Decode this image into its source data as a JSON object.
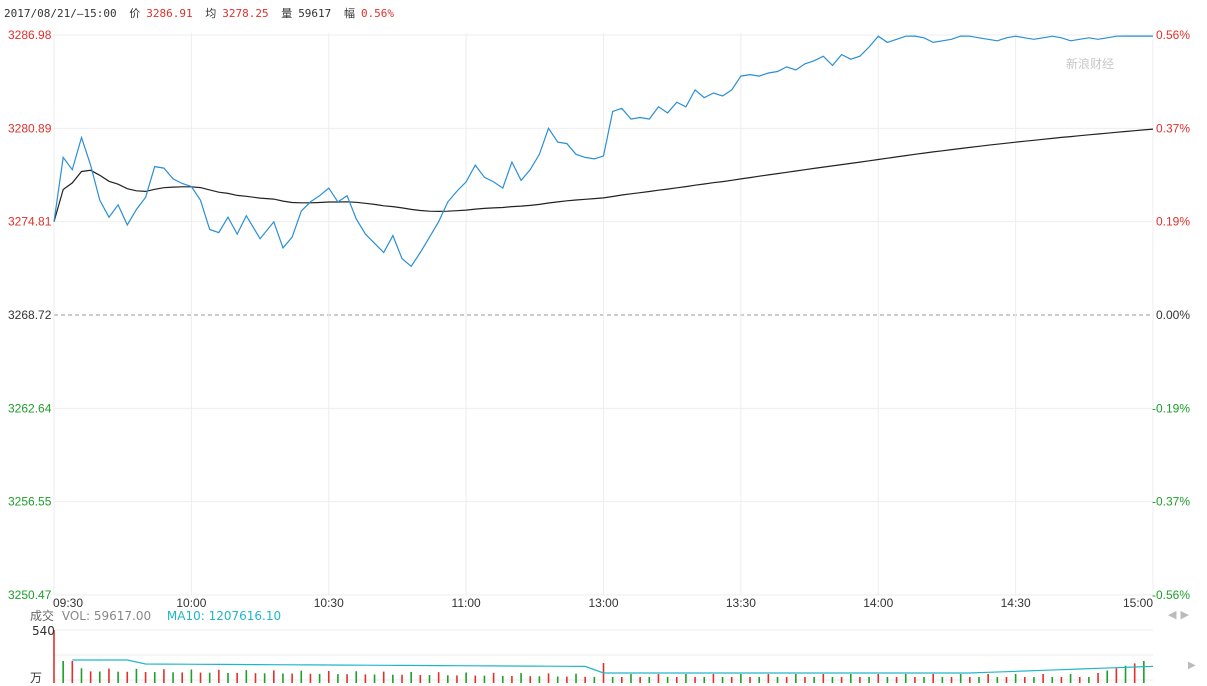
{
  "header": {
    "datetime": "2017/08/21/—15:00",
    "price_label": "价",
    "price": "3286.91",
    "avg_label": "均",
    "avg": "3278.25",
    "vol_label": "量",
    "vol": "59617",
    "chg_label": "幅",
    "chg": "0.56%"
  },
  "watermark": "新浪财经",
  "volume_legend": {
    "label": "成交",
    "vol": "VOL: 59617.00",
    "ma10": "MA10: 1207616.10",
    "max_tick": "540",
    "unit": "万"
  },
  "colors": {
    "up": "#e0302b",
    "down": "#1e9e2a",
    "price_line": "#2a8fd6",
    "avg_line": "#222222",
    "ma10": "#20b6c8"
  },
  "chart_data": [
    {
      "type": "line",
      "title": "",
      "x_ticks": [
        "09:30",
        "10:00",
        "10:30",
        "11:00",
        "13:00",
        "13:30",
        "14:00",
        "14:30",
        "15:00"
      ],
      "y_ticks_left": [
        "3286.98",
        "3280.89",
        "3274.81",
        "3268.72",
        "3262.64",
        "3256.55",
        "3250.47"
      ],
      "y_ticks_right": [
        "0.56%",
        "0.37%",
        "0.19%",
        "0.00%",
        "-0.19%",
        "-0.37%",
        "-0.56%"
      ],
      "ylim": [
        3250.47,
        3286.98
      ],
      "pre_close": 3268.72,
      "series": [
        {
          "name": "价",
          "x": [
            "09:30",
            "09:32",
            "09:34",
            "09:36",
            "09:38",
            "09:40",
            "09:42",
            "09:44",
            "09:46",
            "09:48",
            "09:50",
            "09:52",
            "09:54",
            "09:56",
            "09:58",
            "10:00",
            "10:02",
            "10:04",
            "10:06",
            "10:08",
            "10:10",
            "10:12",
            "10:15",
            "10:18",
            "10:20",
            "10:22",
            "10:24",
            "10:26",
            "10:28",
            "10:30",
            "10:32",
            "10:34",
            "10:36",
            "10:38",
            "10:40",
            "10:42",
            "10:44",
            "10:46",
            "10:48",
            "10:50",
            "10:52",
            "10:54",
            "10:56",
            "10:58",
            "11:00",
            "11:02",
            "11:04",
            "11:06",
            "11:08",
            "11:10",
            "11:12",
            "11:14",
            "11:16",
            "11:18",
            "11:20",
            "11:22",
            "11:24",
            "11:26",
            "11:28",
            "11:30",
            "13:02",
            "13:04",
            "13:06",
            "13:08",
            "13:10",
            "13:12",
            "13:14",
            "13:16",
            "13:18",
            "13:20",
            "13:22",
            "13:24",
            "13:26",
            "13:28",
            "13:30",
            "13:32",
            "13:34",
            "13:36",
            "13:38",
            "13:40",
            "13:42",
            "13:44",
            "13:46",
            "13:48",
            "13:50",
            "13:52",
            "13:54",
            "13:56",
            "13:58",
            "14:00",
            "14:02",
            "14:04",
            "14:06",
            "14:08",
            "14:10",
            "14:12",
            "14:14",
            "14:16",
            "14:18",
            "14:20",
            "14:22",
            "14:24",
            "14:26",
            "14:28",
            "14:30",
            "14:32",
            "14:34",
            "14:36",
            "14:38",
            "14:40",
            "14:42",
            "14:44",
            "14:46",
            "14:48",
            "14:50",
            "14:52",
            "14:54",
            "14:56",
            "14:58",
            "15:00"
          ],
          "values": [
            3274.81,
            3279.0,
            3278.2,
            3280.3,
            3278.5,
            3276.2,
            3275.1,
            3275.9,
            3274.6,
            3275.6,
            3276.4,
            3278.4,
            3278.3,
            3277.6,
            3277.3,
            3277.1,
            3276.2,
            3274.3,
            3274.1,
            3275.1,
            3274.0,
            3275.2,
            3273.7,
            3274.8,
            3273.1,
            3273.8,
            3275.5,
            3276.1,
            3276.5,
            3277.0,
            3276.1,
            3276.5,
            3275.0,
            3274.0,
            3273.4,
            3272.8,
            3273.9,
            3272.4,
            3271.9,
            3272.8,
            3273.8,
            3274.8,
            3276.1,
            3276.8,
            3277.4,
            3278.5,
            3277.7,
            3277.4,
            3277.0,
            3278.7,
            3277.5,
            3278.2,
            3279.2,
            3280.9,
            3280.0,
            3279.9,
            3279.2,
            3279.0,
            3278.9,
            3279.1,
            3282.0,
            3282.2,
            3281.5,
            3281.6,
            3281.5,
            3282.3,
            3281.9,
            3282.6,
            3282.3,
            3283.4,
            3282.9,
            3283.2,
            3283.0,
            3283.4,
            3284.3,
            3284.4,
            3284.3,
            3284.5,
            3284.6,
            3284.9,
            3284.7,
            3285.1,
            3285.3,
            3285.6,
            3285.0,
            3285.7,
            3285.4,
            3285.6,
            3286.2,
            3286.9,
            3286.5,
            3286.7,
            3286.9,
            3286.91,
            3286.8,
            3286.5,
            3286.6,
            3286.7,
            3286.91,
            3286.9,
            3286.8,
            3286.7,
            3286.6,
            3286.8,
            3286.9,
            3286.8,
            3286.7,
            3286.8,
            3286.9,
            3286.8,
            3286.6,
            3286.7,
            3286.8,
            3286.7,
            3286.8,
            3286.9,
            3286.91,
            3286.91,
            3286.91,
            3286.91
          ],
          "color": "#2a8fd6"
        },
        {
          "name": "均",
          "values_note": "",
          "color": "#222222"
        }
      ],
      "xlabel": "",
      "ylabel": "",
      "grid": true
    }
  ]
}
